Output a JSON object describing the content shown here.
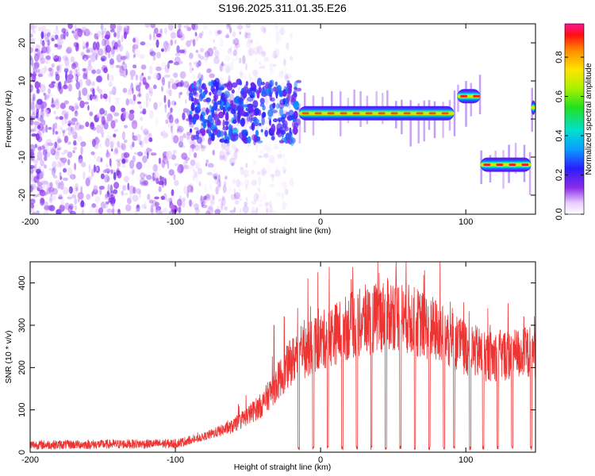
{
  "title": "S196.2025.311.01.35.E26",
  "colorbar_label": "Normalized spectral amplitude",
  "colors": {
    "snr_line": "#ee3333",
    "scatter_cloud": "#7a1fe6",
    "background": "#ffffff"
  },
  "chart_data": [
    {
      "type": "heatmap",
      "xlabel": "Height of straight line (km)",
      "ylabel": "Frequency (Hz)",
      "xlim": [
        -200,
        148
      ],
      "ylim": [
        -25,
        25
      ],
      "xticks": [
        -200,
        -100,
        0,
        100
      ],
      "yticks": [
        -20,
        -10,
        0,
        10,
        20
      ],
      "colorbar": {
        "range": [
          0.0,
          0.97
        ],
        "ticks": [
          0.0,
          0.2,
          0.4,
          0.6,
          0.8
        ]
      },
      "scatter_region": {
        "x_range": [
          -200,
          -50
        ],
        "note_region": [
          -90,
          -20
        ]
      },
      "frequency_track": [
        {
          "x0": -15,
          "x1": 92,
          "freq": 1.5,
          "amp": 0.9
        },
        {
          "x0": 94,
          "x1": 110,
          "freq": 6,
          "amp": 0.95
        },
        {
          "x0": 110,
          "x1": 145,
          "freq": -12,
          "amp": 0.95
        },
        {
          "x0": 145,
          "x1": 148,
          "freq": 3,
          "amp": 0.9
        }
      ]
    },
    {
      "type": "line",
      "xlabel": "Height of straight line (km)",
      "ylabel": "SNR (10 * v/v)",
      "xlim": [
        -200,
        148
      ],
      "ylim": [
        0,
        450
      ],
      "xticks": [
        -200,
        -100,
        0,
        100
      ],
      "yticks": [
        0,
        100,
        200,
        300,
        400
      ],
      "series": [
        {
          "name": "SNR",
          "envelope": [
            {
              "x": -200,
              "y": 15
            },
            {
              "x": -100,
              "y": 18
            },
            {
              "x": -85,
              "y": 30
            },
            {
              "x": -60,
              "y": 60
            },
            {
              "x": -40,
              "y": 110
            },
            {
              "x": -30,
              "y": 160
            },
            {
              "x": -20,
              "y": 210
            },
            {
              "x": 0,
              "y": 255
            },
            {
              "x": 20,
              "y": 290
            },
            {
              "x": 50,
              "y": 320
            },
            {
              "x": 80,
              "y": 280
            },
            {
              "x": 100,
              "y": 240
            },
            {
              "x": 115,
              "y": 220
            },
            {
              "x": 130,
              "y": 225
            },
            {
              "x": 148,
              "y": 230
            }
          ],
          "peak_values": [
            {
              "x": 35,
              "y": 440
            },
            {
              "x": 45,
              "y": 425
            },
            {
              "x": 55,
              "y": 430
            },
            {
              "x": -25,
              "y": 320
            },
            {
              "x": -32,
              "y": 300
            },
            {
              "x": 95,
              "y": 300
            },
            {
              "x": 140,
              "y": 320
            }
          ],
          "dropouts_x": [
            -15,
            -5,
            5,
            15,
            25,
            35,
            45,
            55,
            65,
            75,
            85,
            92,
            103,
            112,
            122,
            132,
            145
          ]
        }
      ]
    }
  ]
}
